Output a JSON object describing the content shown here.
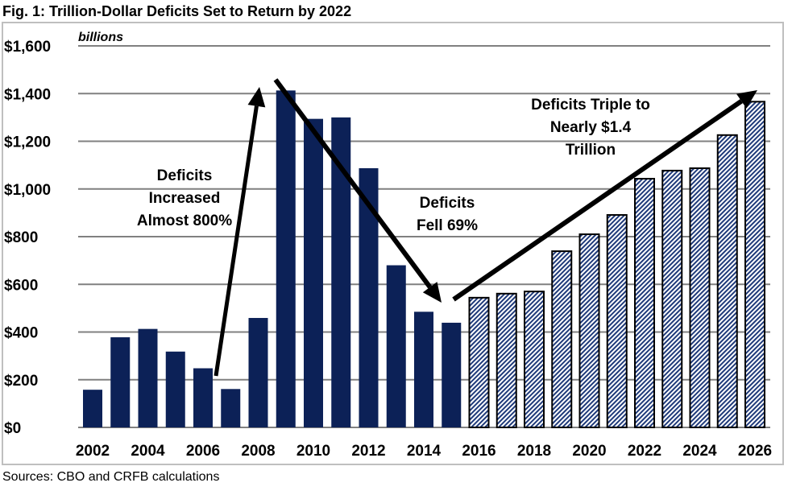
{
  "chart_data": {
    "type": "bar",
    "title": "Fig. 1: Trillion-Dollar Deficits Set to Return by 2022",
    "unit_label": "billions",
    "source": "Sources: CBO and CRFB calculations",
    "categories": [
      2002,
      2003,
      2004,
      2005,
      2006,
      2007,
      2008,
      2009,
      2010,
      2011,
      2012,
      2013,
      2014,
      2015,
      2016,
      2017,
      2018,
      2019,
      2020,
      2021,
      2022,
      2023,
      2024,
      2025,
      2026
    ],
    "values": [
      158,
      378,
      413,
      318,
      248,
      161,
      459,
      1413,
      1294,
      1300,
      1087,
      680,
      485,
      439,
      544,
      561,
      570,
      739,
      810,
      891,
      1043,
      1077,
      1087,
      1226,
      1366
    ],
    "projected_from": 2016,
    "ylim": [
      0,
      1600
    ],
    "yticks": [
      "$0",
      "$200",
      "$400",
      "$600",
      "$800",
      "$1,000",
      "$1,200",
      "$1,400",
      "$1,600"
    ],
    "xticks": [
      "2002",
      "2004",
      "2006",
      "2008",
      "2010",
      "2012",
      "2014",
      "2016",
      "2018",
      "2020",
      "2022",
      "2024",
      "2026"
    ],
    "grid": true,
    "colors": {
      "actual": "#0c2157",
      "projected_hatch": "#1f3a7a",
      "gridline": "#808080"
    },
    "annotations": [
      {
        "lines": [
          "Deficits",
          "Increased",
          "Almost 800%"
        ]
      },
      {
        "lines": [
          "Deficits",
          "Fell 69%"
        ]
      },
      {
        "lines": [
          "Deficits Triple to",
          "Nearly $1.4",
          "Trillion"
        ]
      }
    ]
  }
}
